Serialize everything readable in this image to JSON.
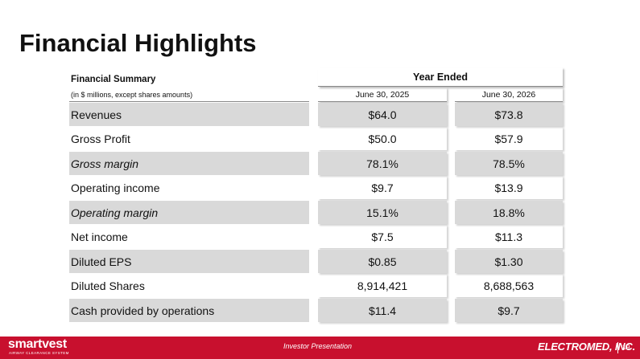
{
  "title": "Financial Highlights",
  "table": {
    "summary_label": "Financial Summary",
    "units_label": "(in $ millions, except shares amounts)",
    "group_header": "Year Ended",
    "columns": [
      "June 30, 2025",
      "June 30, 2026"
    ],
    "rows": [
      {
        "label": "Revenues",
        "v1": "$64.0",
        "v2": "$73.8"
      },
      {
        "label": "Gross Profit",
        "v1": "$50.0",
        "v2": "$57.9"
      },
      {
        "label": "Gross margin",
        "v1": "78.1%",
        "v2": "78.5%"
      },
      {
        "label": "Operating income",
        "v1": "$9.7",
        "v2": "$13.9"
      },
      {
        "label": "Operating margin",
        "v1": "15.1%",
        "v2": "18.8%"
      },
      {
        "label": "Net income",
        "v1": "$7.5",
        "v2": "$11.3"
      },
      {
        "label": "Diluted EPS",
        "v1": "$0.85",
        "v2": "$1.30"
      },
      {
        "label": "Diluted Shares",
        "v1": "8,914,421",
        "v2": "8,688,563"
      },
      {
        "label": "Cash provided by operations",
        "v1": "$11.4",
        "v2": "$9.7"
      }
    ]
  },
  "footer": {
    "left_logo": "smartvest",
    "left_logo_tagline": "AIRWAY CLEARANCE SYSTEM",
    "center_text": "Investor Presentation",
    "right_brand": "ELECTROMED, INC.",
    "page_number": "19",
    "bar_color": "#c8102e"
  },
  "colors": {
    "row_shade": "#d9d9d9"
  }
}
